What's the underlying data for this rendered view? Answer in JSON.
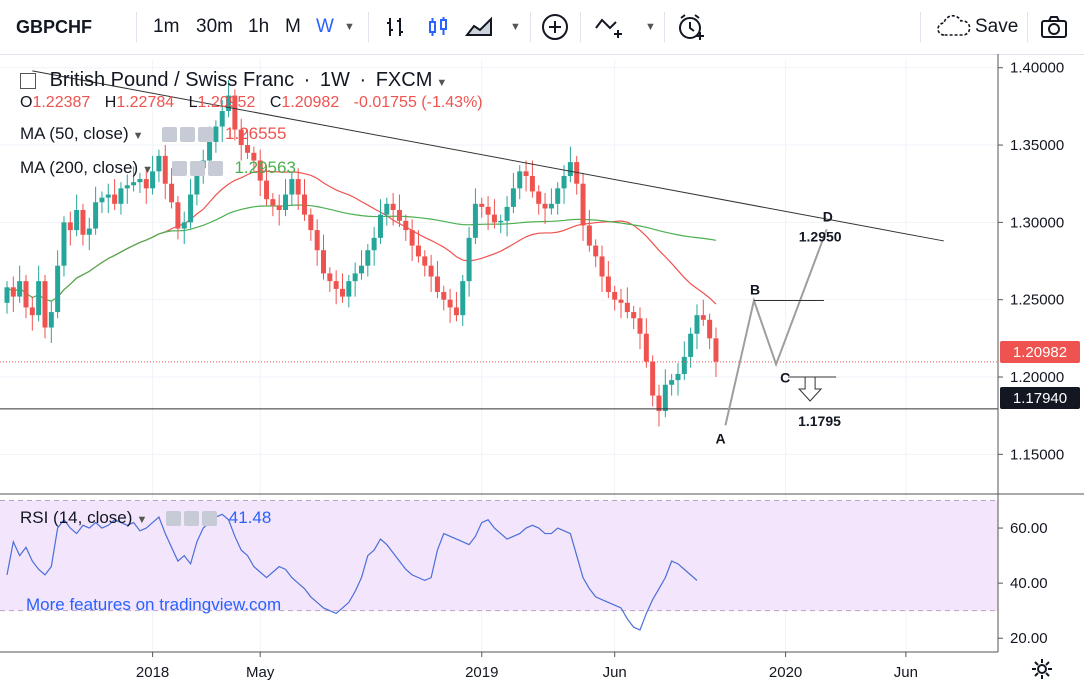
{
  "toolbar": {
    "symbol": "GBPCHF",
    "intervals": [
      "1m",
      "30m",
      "1h",
      "M",
      "W"
    ],
    "active_interval": "W",
    "save_label": "Save"
  },
  "legend": {
    "title": "British Pound / Swiss Franc",
    "interval": "1W",
    "exchange": "FXCM",
    "ohlc": {
      "o_label": "O",
      "o": "1.22387",
      "h_label": "H",
      "h": "1.22784",
      "l_label": "L",
      "l": "1.20952",
      "c_label": "C",
      "c": "1.20982",
      "change": "-0.01755 (-1.43%)"
    },
    "ma50": {
      "label": "MA (50, close)",
      "value": "1.26555"
    },
    "ma200": {
      "label": "MA (200, close)",
      "value": "1.29563"
    },
    "rsi": {
      "label": "RSI (14, close)",
      "value": "41.48"
    }
  },
  "watermark_link": "More features on tradingview.com",
  "price_tags": {
    "last": "1.20982",
    "line": "1.17940"
  },
  "colors": {
    "up": "#26a69a",
    "down": "#ef5350",
    "ma50": "#ef5350",
    "ma200": "#4caf50",
    "rsi": "#4a6fd8",
    "rsi_band": "#f3e5fb",
    "accent": "#2962ff"
  },
  "chart_data": [
    {
      "type": "candlestick",
      "title": "British Pound / Swiss Franc",
      "ylim": [
        1.125,
        1.405
      ],
      "yticks": [
        "1.15000",
        "1.20000",
        "1.25000",
        "1.30000",
        "1.35000",
        "1.40000"
      ],
      "ytick_values": [
        1.15,
        1.2,
        1.25,
        1.3,
        1.35,
        1.4
      ],
      "xticks": [
        "2018",
        "May",
        "2019",
        "Jun",
        "2020",
        "Jun"
      ],
      "xtick_weeks": [
        23,
        40,
        75,
        96,
        123,
        142
      ],
      "week_count": 148,
      "closes": [
        1.258,
        1.252,
        1.262,
        1.245,
        1.24,
        1.262,
        1.232,
        1.242,
        1.272,
        1.3,
        1.295,
        1.308,
        1.292,
        1.296,
        1.313,
        1.316,
        1.318,
        1.312,
        1.322,
        1.324,
        1.326,
        1.328,
        1.322,
        1.333,
        1.343,
        1.325,
        1.313,
        1.296,
        1.3,
        1.318,
        1.335,
        1.34,
        1.352,
        1.362,
        1.372,
        1.382,
        1.36,
        1.35,
        1.345,
        1.34,
        1.327,
        1.315,
        1.311,
        1.308,
        1.318,
        1.328,
        1.318,
        1.305,
        1.295,
        1.282,
        1.267,
        1.262,
        1.257,
        1.252,
        1.262,
        1.267,
        1.272,
        1.282,
        1.29,
        1.305,
        1.312,
        1.308,
        1.301,
        1.295,
        1.285,
        1.278,
        1.272,
        1.265,
        1.255,
        1.25,
        1.245,
        1.24,
        1.262,
        1.29,
        1.312,
        1.31,
        1.305,
        1.3,
        1.301,
        1.31,
        1.322,
        1.333,
        1.33,
        1.32,
        1.312,
        1.309,
        1.312,
        1.322,
        1.33,
        1.339,
        1.325,
        1.298,
        1.285,
        1.278,
        1.265,
        1.255,
        1.25,
        1.248,
        1.242,
        1.238,
        1.228,
        1.21,
        1.188,
        1.178,
        1.195,
        1.198,
        1.202,
        1.213,
        1.228,
        1.24,
        1.237,
        1.225,
        1.21
      ],
      "ma50_label": "MA (50, close)",
      "ma50_value": 1.26555,
      "ma200_label": "MA (200, close)",
      "ma200_value": 1.29563,
      "last_close": 1.20982,
      "horizontal_line": 1.1794,
      "annotations": {
        "points": [
          {
            "label": "A",
            "week": 113.5,
            "price": 1.1688
          },
          {
            "label": "B",
            "week": 118,
            "price": 1.2495
          },
          {
            "label": "C",
            "week": 121.5,
            "price": 1.2082
          },
          {
            "label": "D",
            "week": 129.5,
            "price": 1.2955
          }
        ],
        "target_label": "1.2950",
        "stop_label": "1.1795",
        "trendline": [
          {
            "week": 4,
            "price": 1.398
          },
          {
            "week": 148,
            "price": 1.288
          }
        ]
      }
    },
    {
      "type": "line",
      "title": "RSI (14, close)",
      "ylim": [
        15,
        72
      ],
      "yticks": [
        "20.00",
        "40.00",
        "60.00"
      ],
      "ytick_values": [
        20,
        40,
        60
      ],
      "band": [
        30,
        70
      ],
      "values": [
        43,
        55,
        50,
        53,
        48,
        45,
        43,
        46,
        60,
        63,
        60,
        58,
        61,
        60,
        62,
        60,
        61,
        63,
        62,
        61,
        62,
        59,
        60,
        62,
        64,
        58,
        53,
        48,
        50,
        47,
        55,
        60,
        62,
        64,
        65,
        63,
        57,
        52,
        50,
        46,
        44,
        42,
        44,
        46,
        45,
        42,
        40,
        38,
        35,
        33,
        31,
        30,
        29,
        31,
        33,
        37,
        42,
        50,
        52,
        56,
        54,
        51,
        48,
        45,
        43,
        42,
        41,
        42,
        52,
        58,
        57,
        56,
        55,
        54,
        57,
        62,
        63,
        60,
        58,
        56,
        57,
        58,
        60,
        61,
        60,
        58,
        58,
        60,
        59,
        58,
        50,
        42,
        38,
        35,
        34,
        33,
        32,
        31,
        27,
        24,
        23,
        29,
        34,
        38,
        42,
        48,
        47,
        45,
        43,
        41
      ]
    }
  ]
}
